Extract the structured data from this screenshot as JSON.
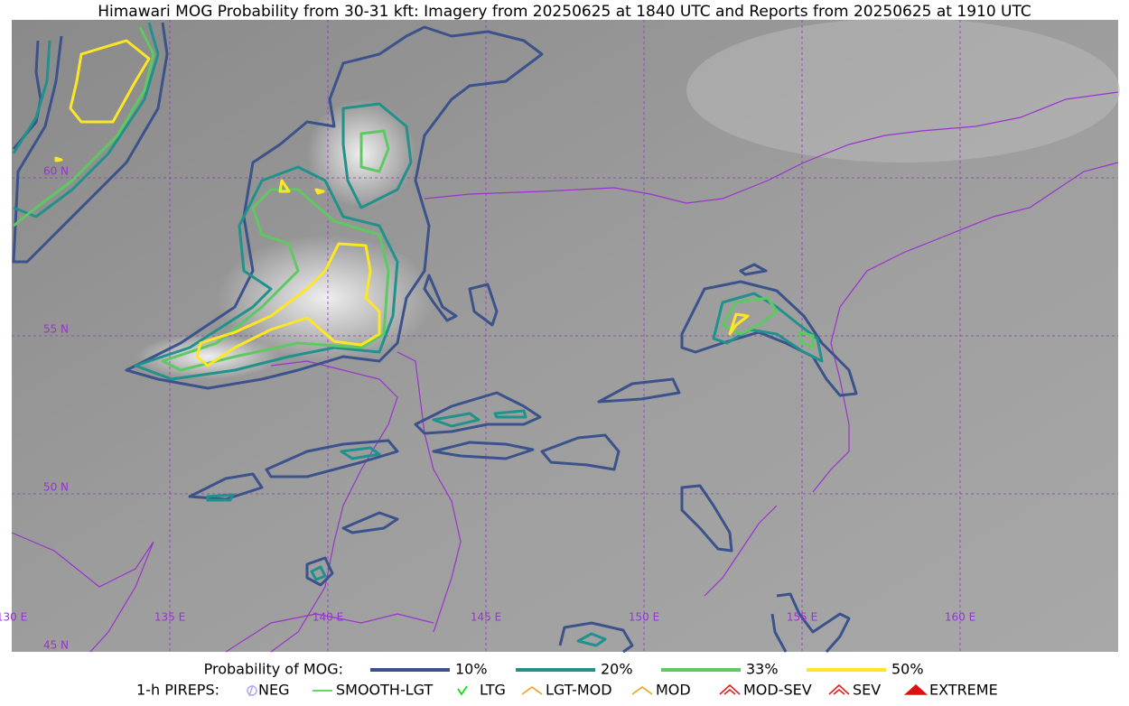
{
  "title": "Himawari MOG Probability from 30-31 kft: Imagery from 20250625 at 1840 UTC and Reports from 20250625 at 1910 UTC",
  "map": {
    "lat_labels": [
      "60 N",
      "55 N",
      "50 N",
      "45 N"
    ],
    "lon_labels": [
      "130 E",
      "135 E",
      "140 E",
      "145 E",
      "150 E",
      "155 E",
      "160 E"
    ]
  },
  "legend": {
    "probability": {
      "title": "Probability of MOG:",
      "items": [
        {
          "label": "10%",
          "color": "#3b528b"
        },
        {
          "label": "20%",
          "color": "#21918c"
        },
        {
          "label": "33%",
          "color": "#5ec962"
        },
        {
          "label": "50%",
          "color": "#fde725"
        }
      ]
    },
    "pireps": {
      "title": "1-h PIREPS:",
      "items": [
        {
          "label": "NEG",
          "color": "#b0b0f0"
        },
        {
          "label": "SMOOTH-LGT",
          "color": "#33cc33"
        },
        {
          "label": "LTG",
          "color": "#00e000"
        },
        {
          "label": "LGT-MOD",
          "color": "#f0a020"
        },
        {
          "label": "MOD",
          "color": "#f0a020"
        },
        {
          "label": "MOD-SEV",
          "color": "#e02020"
        },
        {
          "label": "SEV",
          "color": "#e02020"
        },
        {
          "label": "EXTREME",
          "color": "#e01010"
        }
      ]
    }
  }
}
